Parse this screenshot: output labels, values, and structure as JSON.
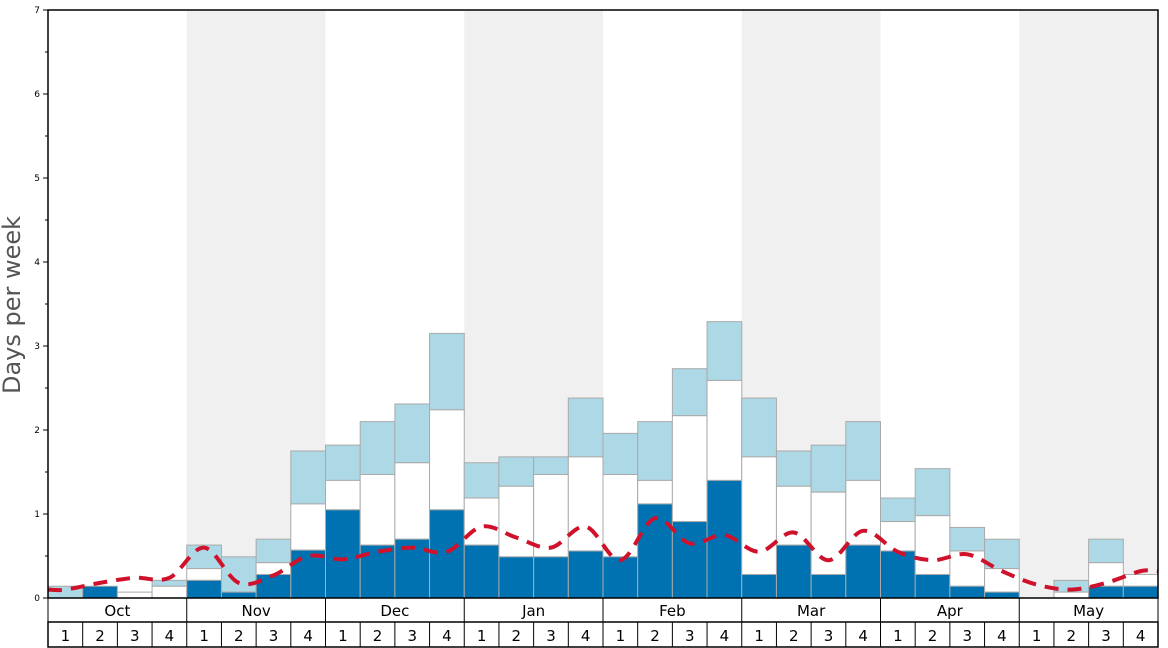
{
  "chart_data": {
    "type": "bar",
    "ylabel": "Days per week",
    "ylim": [
      0,
      7
    ],
    "yticks": [
      0,
      1,
      2,
      3,
      4,
      5,
      6,
      7
    ],
    "months": [
      "Oct",
      "Nov",
      "Dec",
      "Jan",
      "Feb",
      "Mar",
      "Apr",
      "May"
    ],
    "weeks": [
      "1",
      "2",
      "3",
      "4"
    ],
    "shaded_months": [
      "Nov",
      "Jan",
      "Mar",
      "May"
    ],
    "colors": {
      "dark": "#0072b2",
      "mid": "#ffffff",
      "light": "#add8e6",
      "line": "#d0112b",
      "shade": "#f0f0f0",
      "bar_border": "#aaaaaa"
    },
    "series": [
      {
        "values_dark": [
          0,
          0.14,
          0,
          0,
          0.21,
          0.07,
          0.28,
          0.57,
          1.05,
          0.63,
          0.7,
          1.05,
          0.63,
          0.49,
          0.49,
          0.56,
          0.49,
          1.12,
          0.91,
          1.4,
          0.28,
          0.63,
          0.28,
          0.63,
          0.56,
          0.28,
          0.14,
          0.07,
          0,
          0,
          0.14,
          0.14
        ]
      },
      {
        "values_mid": [
          0,
          0.14,
          0.07,
          0.14,
          0.35,
          0.07,
          0.42,
          1.12,
          1.4,
          1.47,
          1.61,
          2.24,
          1.19,
          1.33,
          1.47,
          1.68,
          1.47,
          1.4,
          2.17,
          2.59,
          1.68,
          1.33,
          1.26,
          1.4,
          0.91,
          0.98,
          0.56,
          0.35,
          0,
          0.07,
          0.42,
          0.28
        ]
      },
      {
        "values_total": [
          0.14,
          0.14,
          0.07,
          0.21,
          0.63,
          0.49,
          0.7,
          1.75,
          1.82,
          2.1,
          2.31,
          3.15,
          1.61,
          1.68,
          1.68,
          2.38,
          1.96,
          2.1,
          2.73,
          3.29,
          2.38,
          1.75,
          1.82,
          2.1,
          1.19,
          1.54,
          0.84,
          0.7,
          0,
          0.21,
          0.7,
          0.28
        ]
      },
      {
        "values_average": [
          0.1,
          0.18,
          0.24,
          0.24,
          0.6,
          0.18,
          0.27,
          0.5,
          0.46,
          0.55,
          0.6,
          0.55,
          0.85,
          0.72,
          0.6,
          0.85,
          0.45,
          0.95,
          0.65,
          0.75,
          0.55,
          0.78,
          0.45,
          0.8,
          0.55,
          0.45,
          0.52,
          0.32,
          0.16,
          0.1,
          0.18,
          0.32
        ]
      }
    ]
  }
}
